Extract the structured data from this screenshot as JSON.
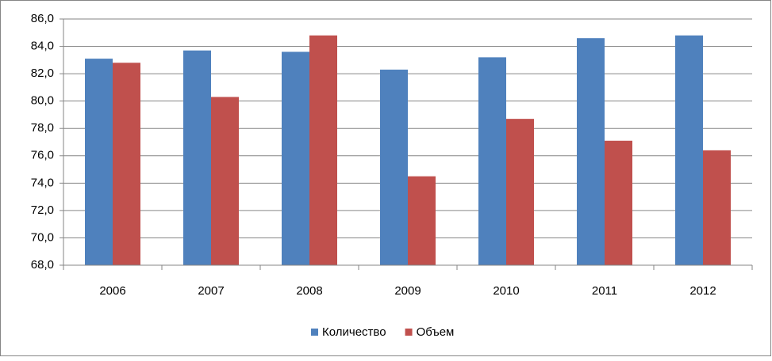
{
  "chart_data": {
    "type": "bar",
    "categories": [
      "2006",
      "2007",
      "2008",
      "2009",
      "2010",
      "2011",
      "2012"
    ],
    "series": [
      {
        "name": "Количество",
        "color": "#4f81bd",
        "values": [
          83.1,
          83.7,
          83.6,
          82.3,
          83.2,
          84.6,
          84.8
        ]
      },
      {
        "name": "Объем",
        "color": "#c0504d",
        "values": [
          82.8,
          80.3,
          84.8,
          74.5,
          78.7,
          77.1,
          76.4
        ]
      }
    ],
    "ylim": [
      68,
      86
    ],
    "yticks": [
      {
        "value": 68,
        "label": "68,0"
      },
      {
        "value": 70,
        "label": "70,0"
      },
      {
        "value": 72,
        "label": "72,0"
      },
      {
        "value": 74,
        "label": "74,0"
      },
      {
        "value": 76,
        "label": "76,0"
      },
      {
        "value": 78,
        "label": "78,0"
      },
      {
        "value": 80,
        "label": "80,0"
      },
      {
        "value": 82,
        "label": "82,0"
      },
      {
        "value": 84,
        "label": "84,0"
      },
      {
        "value": 86,
        "label": "86,0"
      }
    ],
    "grid": true,
    "legend": "bottom"
  }
}
